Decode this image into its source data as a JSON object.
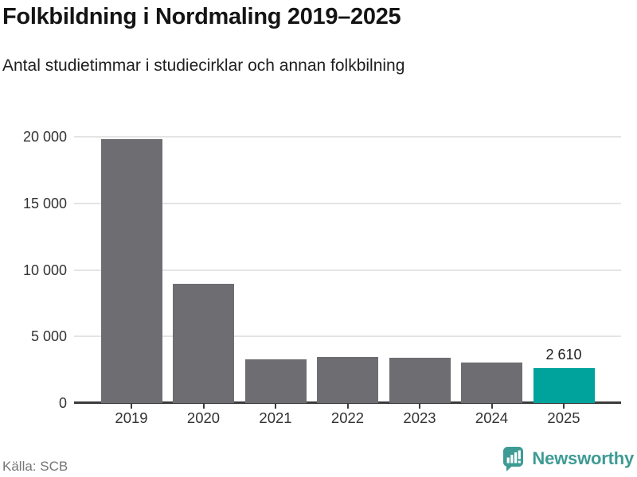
{
  "title": "Folkbildning i Nordmaling 2019–2025",
  "subtitle": "Antal studietimmar i studiecirklar och annan folkbilning",
  "source": "Källa: SCB",
  "brand": {
    "name": "Newsworthy",
    "logo_icon": "newsworthy-pin-barchart-icon",
    "color": "#3e9b94"
  },
  "colors": {
    "bar_default": "#6e6d72",
    "bar_highlight": "#00a39b",
    "axis": "#3b3b3b",
    "gridline": "#e4e4e6",
    "tick_label": "#333333",
    "value_label": "#1e1e1e"
  },
  "chart_data": {
    "type": "bar",
    "title": "Folkbildning i Nordmaling 2019–2025",
    "subtitle": "Antal studietimmar i studiecirklar och annan folkbilning",
    "categories": [
      "2019",
      "2020",
      "2021",
      "2022",
      "2023",
      "2024",
      "2025"
    ],
    "values": [
      19800,
      8950,
      3300,
      3450,
      3400,
      3050,
      2610
    ],
    "highlight_index": 6,
    "value_labels": [
      null,
      null,
      null,
      null,
      null,
      null,
      "2 610"
    ],
    "xlabel": "",
    "ylabel": "",
    "ylim": [
      0,
      20000
    ],
    "yticks": [
      0,
      5000,
      10000,
      15000,
      20000
    ],
    "ytick_labels": [
      "0",
      "5 000",
      "10 000",
      "15 000",
      "20 000"
    ],
    "grid": true,
    "legend": false,
    "source": "Källa: SCB"
  }
}
